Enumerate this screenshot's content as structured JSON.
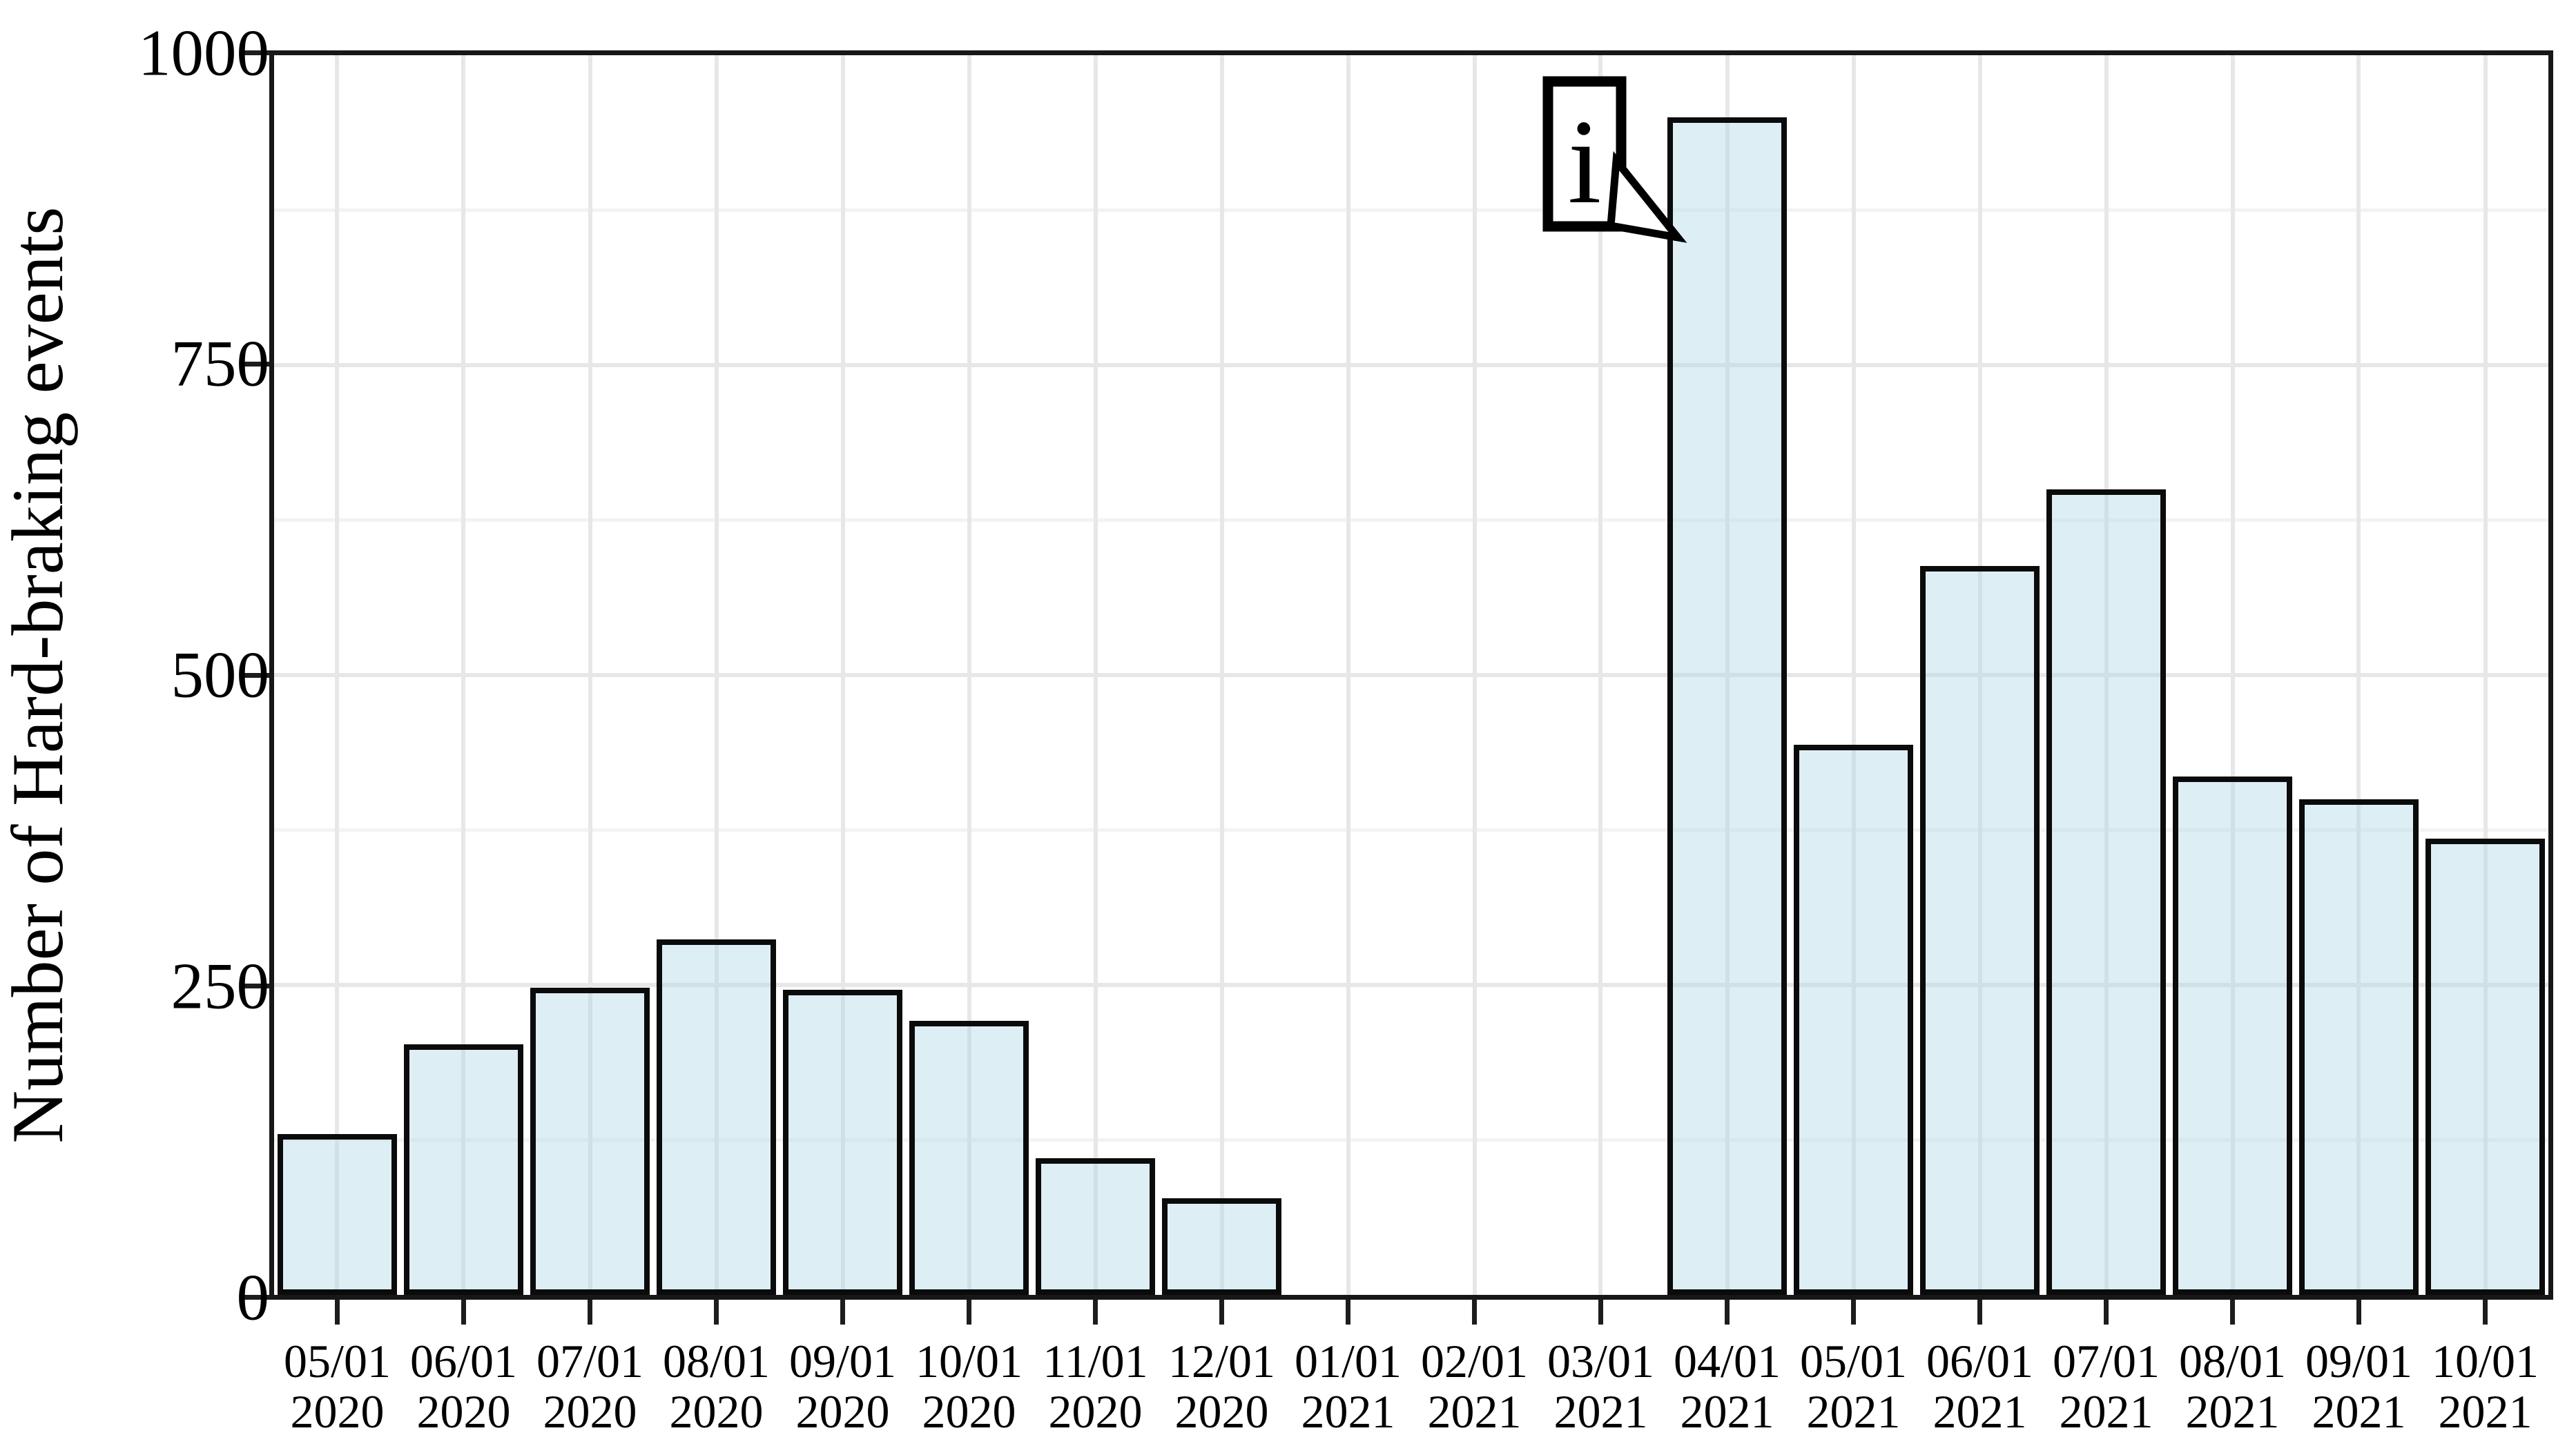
{
  "chart_data": {
    "type": "bar",
    "title": "",
    "xlabel": "",
    "ylabel": "Number of Hard-braking events",
    "ylim": [
      0,
      1000
    ],
    "yticks": [
      0,
      250,
      500,
      750,
      1000
    ],
    "ygrid_minor": [
      125,
      375,
      625,
      875
    ],
    "grid": "on",
    "legend": "none",
    "categories": [
      {
        "line1": "05/01",
        "line2": "2020"
      },
      {
        "line1": "06/01",
        "line2": "2020"
      },
      {
        "line1": "07/01",
        "line2": "2020"
      },
      {
        "line1": "08/01",
        "line2": "2020"
      },
      {
        "line1": "09/01",
        "line2": "2020"
      },
      {
        "line1": "10/01",
        "line2": "2020"
      },
      {
        "line1": "11/01",
        "line2": "2020"
      },
      {
        "line1": "12/01",
        "line2": "2020"
      },
      {
        "line1": "01/01",
        "line2": "2021"
      },
      {
        "line1": "02/01",
        "line2": "2021"
      },
      {
        "line1": "03/01",
        "line2": "2021"
      },
      {
        "line1": "04/01",
        "line2": "2021"
      },
      {
        "line1": "05/01",
        "line2": "2021"
      },
      {
        "line1": "06/01",
        "line2": "2021"
      },
      {
        "line1": "07/01",
        "line2": "2021"
      },
      {
        "line1": "08/01",
        "line2": "2021"
      },
      {
        "line1": "09/01",
        "line2": "2021"
      },
      {
        "line1": "10/01",
        "line2": "2021"
      }
    ],
    "values": [
      130,
      202,
      248,
      287,
      246,
      221,
      110,
      78,
      0,
      0,
      0,
      950,
      444,
      588,
      650,
      418,
      400,
      368
    ],
    "annotation": {
      "text": "i",
      "points_to_category": "04/01 2021"
    },
    "colors": {
      "bar_fill": "#ddeef6",
      "bar_border": "#0b0b0b",
      "axis": "#171717",
      "grid_major": "#e7e7e7",
      "grid_minor": "#f3f3f3",
      "text": "#000000"
    }
  }
}
